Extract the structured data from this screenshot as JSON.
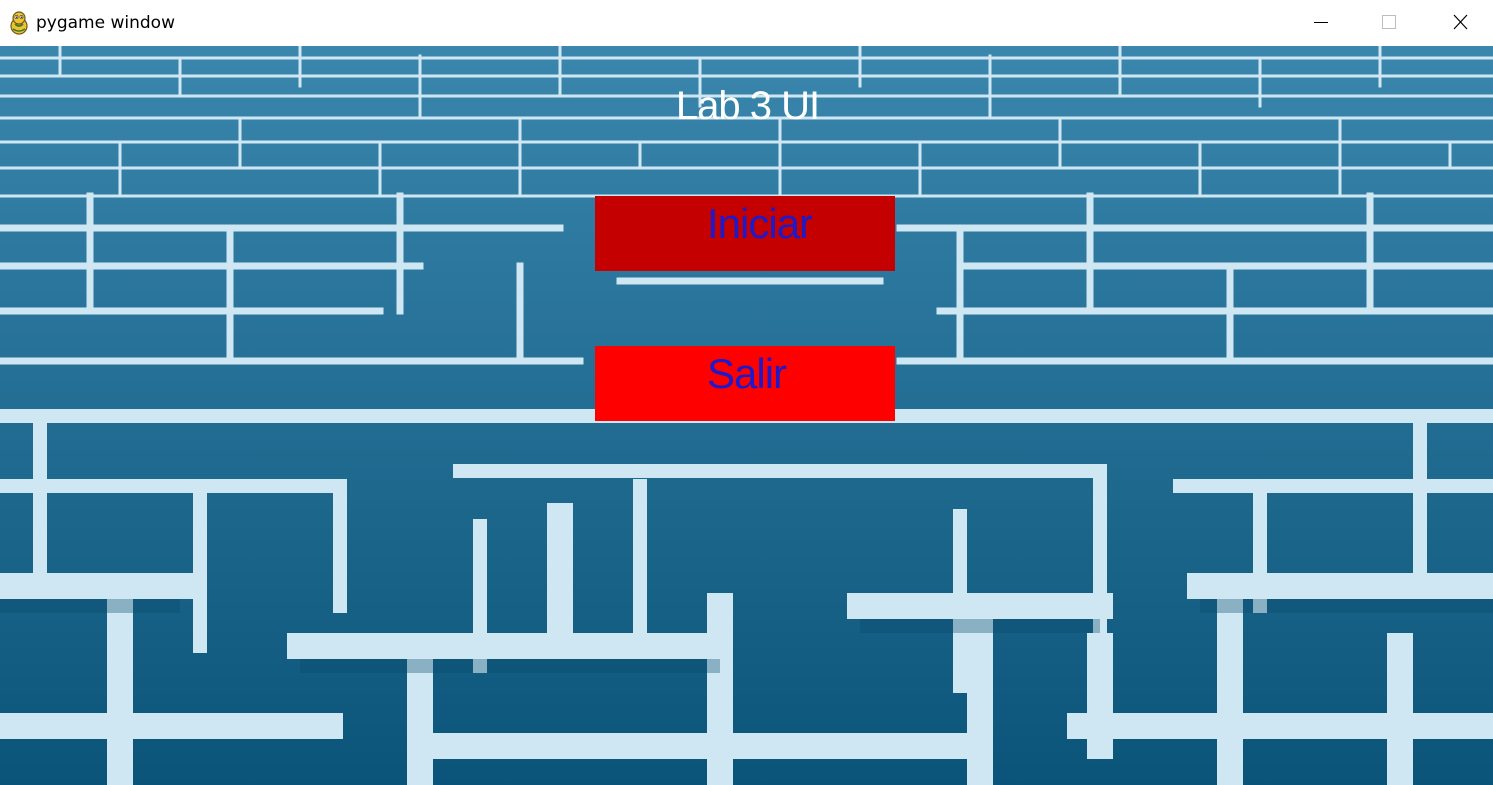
{
  "window": {
    "title": "pygame window",
    "icon": "python-snake-icon",
    "controls": {
      "minimize": "minimize-icon",
      "maximize": "maximize-icon",
      "close": "close-icon"
    }
  },
  "game": {
    "title": "Lab 3 UI",
    "background": "maze",
    "buttons": {
      "start": {
        "label": "Iniciar",
        "color": "#c40000",
        "text_color": "#1f19c8"
      },
      "exit": {
        "label": "Salir",
        "color": "#ff0000",
        "text_color": "#1f19c8"
      }
    }
  }
}
